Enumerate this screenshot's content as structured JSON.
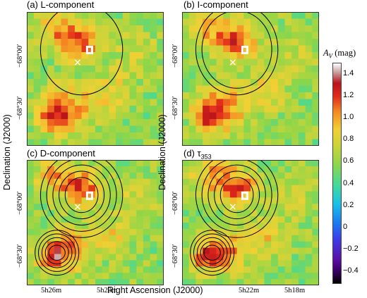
{
  "panels": [
    {
      "label": "(a) L-component",
      "contour_level": 0
    },
    {
      "label": "(b) I-component",
      "contour_level": 1
    },
    {
      "label": "(c) D-component",
      "contour_level": 2
    },
    {
      "label": "(d) τ",
      "label_sub": "353",
      "contour_level": 3
    }
  ],
  "y_ticks": [
    "−68°00′",
    "−68°30′"
  ],
  "x_ticks_left": [
    "5h26m",
    "5h20m"
  ],
  "x_ticks_right": [
    "5h22m",
    "5h18m"
  ],
  "axis_titles": {
    "y": "Declination (J2000)",
    "x": "Right Ascension (J2000)"
  },
  "colorbar": {
    "title_symbol": "A",
    "title_sub": "V",
    "title_unit": "(mag)",
    "min": -0.5,
    "max": 1.5,
    "ticks": [
      "1.4",
      "1.2",
      "1.0",
      "0.8",
      "0.6",
      "0.4",
      "0.2",
      "0",
      "−0.2",
      "−0.4"
    ]
  },
  "colors": {
    "background_green": "#7ad152",
    "contour": "#000000",
    "marker": "#ffffff"
  },
  "icons": {
    "marker": "cross-marker-icon",
    "peak": "peak-marker-icon"
  }
}
